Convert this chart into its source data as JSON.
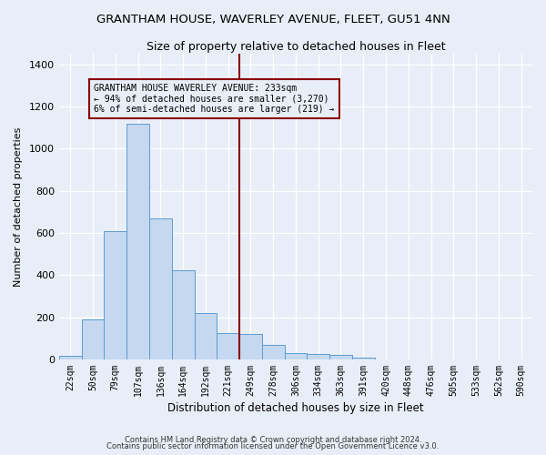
{
  "title": "GRANTHAM HOUSE, WAVERLEY AVENUE, FLEET, GU51 4NN",
  "subtitle": "Size of property relative to detached houses in Fleet",
  "xlabel": "Distribution of detached houses by size in Fleet",
  "ylabel": "Number of detached properties",
  "bar_labels": [
    "22sqm",
    "50sqm",
    "79sqm",
    "107sqm",
    "136sqm",
    "164sqm",
    "192sqm",
    "221sqm",
    "249sqm",
    "278sqm",
    "306sqm",
    "334sqm",
    "363sqm",
    "391sqm",
    "420sqm",
    "448sqm",
    "476sqm",
    "505sqm",
    "533sqm",
    "562sqm",
    "590sqm"
  ],
  "bar_values": [
    15,
    190,
    610,
    1120,
    670,
    425,
    220,
    125,
    120,
    70,
    30,
    25,
    20,
    10,
    0,
    0,
    0,
    0,
    0,
    0,
    0
  ],
  "bar_color": "#c5d8f0",
  "bar_edgecolor": "#5b9bd5",
  "background_color": "#e8eef7",
  "vline_x": 7.5,
  "vline_color": "#8b0000",
  "annotation_text": "GRANTHAM HOUSE WAVERLEY AVENUE: 233sqm\n← 94% of detached houses are smaller (3,270)\n6% of semi-detached houses are larger (219) →",
  "annotation_box_edgecolor": "#8b0000",
  "annotation_box_facecolor": "#e8eef7",
  "ylim": [
    0,
    1450
  ],
  "yticks": [
    0,
    200,
    400,
    600,
    800,
    1000,
    1200,
    1400
  ],
  "footer_line1": "Contains HM Land Registry data © Crown copyright and database right 2024.",
  "footer_line2": "Contains public sector information licensed under the Open Government Licence v3.0.",
  "title_fontsize": 9.5,
  "subtitle_fontsize": 9,
  "ylabel_fontsize": 8,
  "xlabel_fontsize": 8.5,
  "annotation_fontsize": 7,
  "ytick_fontsize": 8,
  "xtick_fontsize": 7
}
